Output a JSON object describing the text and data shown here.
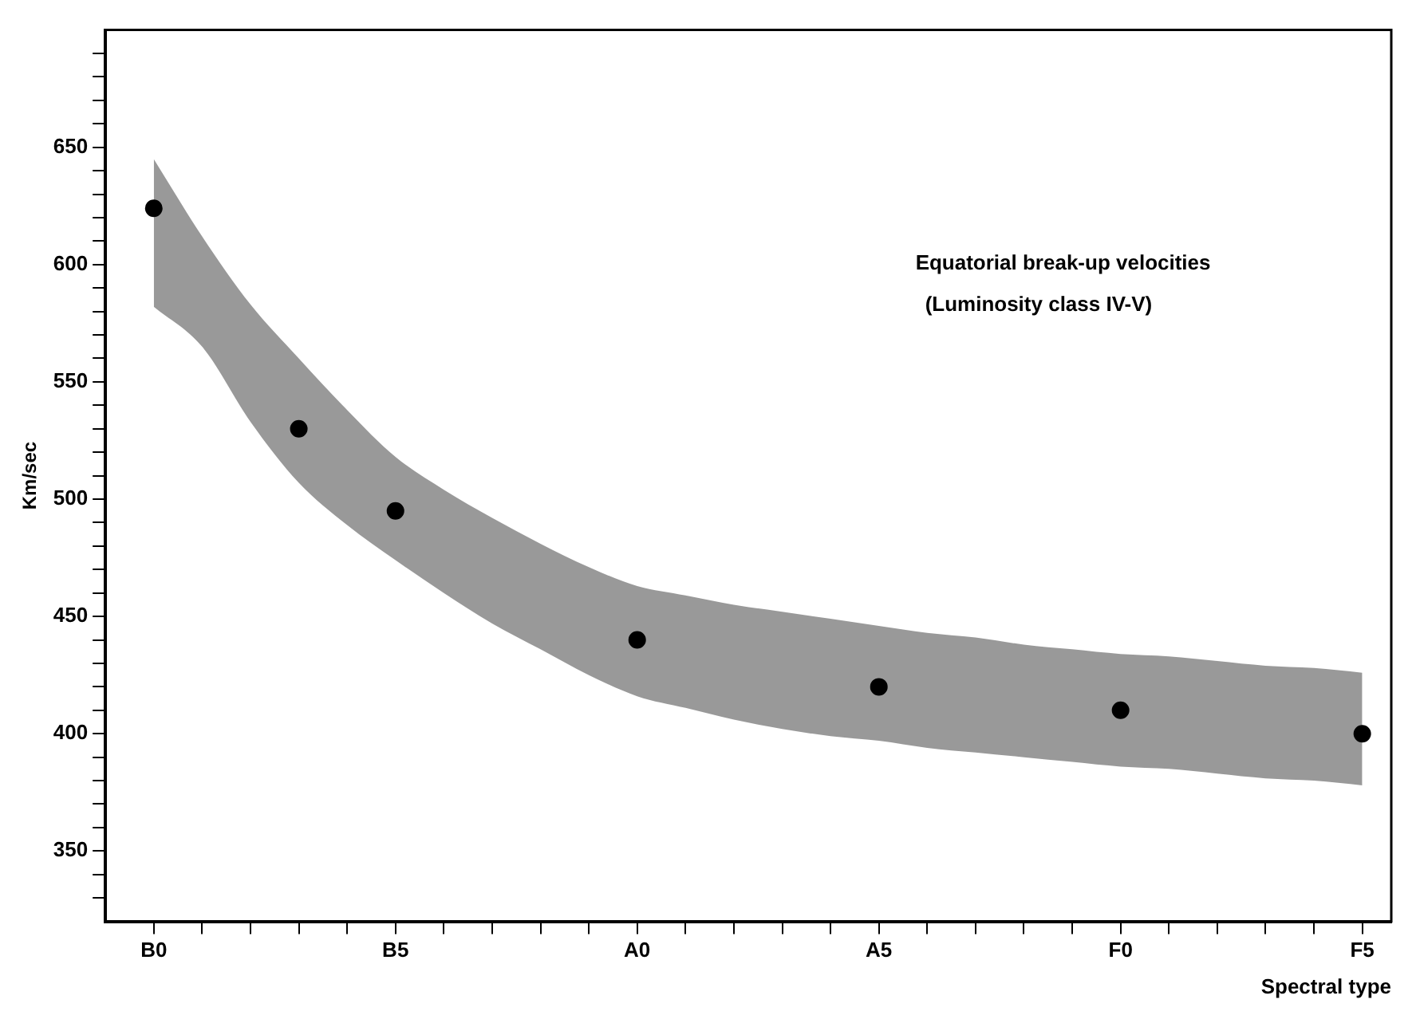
{
  "chart_data": {
    "type": "scatter",
    "xlabel": "Spectral type",
    "ylabel": "Km/sec",
    "annotations": [
      "Equatorial break-up velocities",
      "(Luminosity class IV-V)"
    ],
    "categories": [
      "B0",
      null,
      null,
      null,
      null,
      "B5",
      null,
      null,
      null,
      null,
      "A0",
      null,
      null,
      null,
      null,
      "A5",
      null,
      null,
      null,
      null,
      "F0",
      null,
      null,
      null,
      null,
      "F5"
    ],
    "ylim": [
      320,
      700
    ],
    "yticks": [
      {
        "value": 330,
        "label": null
      },
      {
        "value": 340,
        "label": null
      },
      350,
      {
        "value": 360,
        "label": null
      },
      {
        "value": 370,
        "label": null
      },
      {
        "value": 380,
        "label": null
      },
      {
        "value": 390,
        "label": null
      },
      400,
      {
        "value": 410,
        "label": null
      },
      {
        "value": 420,
        "label": null
      },
      {
        "value": 430,
        "label": null
      },
      {
        "value": 440,
        "label": null
      },
      450,
      {
        "value": 460,
        "label": null
      },
      {
        "value": 470,
        "label": null
      },
      {
        "value": 480,
        "label": null
      },
      {
        "value": 490,
        "label": null
      },
      500,
      {
        "value": 510,
        "label": null
      },
      {
        "value": 520,
        "label": null
      },
      {
        "value": 530,
        "label": null
      },
      {
        "value": 540,
        "label": null
      },
      550,
      {
        "value": 560,
        "label": null
      },
      {
        "value": 570,
        "label": null
      },
      {
        "value": 580,
        "label": null
      },
      {
        "value": 590,
        "label": null
      },
      600,
      {
        "value": 610,
        "label": null
      },
      {
        "value": 620,
        "label": null
      },
      {
        "value": 630,
        "label": null
      },
      {
        "value": 640,
        "label": null
      },
      650,
      {
        "value": 660,
        "label": null
      },
      {
        "value": 670,
        "label": null
      },
      {
        "value": 680,
        "label": null
      },
      {
        "value": 690,
        "label": null
      }
    ],
    "grid": false,
    "legend": false,
    "marker": "circle",
    "series": [
      {
        "color": "#000000",
        "values": [
          624,
          null,
          null,
          530,
          null,
          495,
          null,
          null,
          null,
          null,
          440,
          null,
          null,
          null,
          null,
          420,
          null,
          null,
          null,
          null,
          410,
          null,
          null,
          null,
          null,
          400
        ],
        "lower": [
          582,
          565,
          533,
          507,
          489,
          474,
          460,
          447,
          436,
          425,
          416,
          411,
          406,
          402,
          399,
          397,
          394,
          392,
          390,
          388,
          386,
          385,
          383,
          381,
          380,
          378
        ],
        "upper": [
          645,
          612,
          583,
          560,
          538,
          518,
          504,
          492,
          481,
          471,
          463,
          459,
          455,
          452,
          449,
          446,
          443,
          441,
          438,
          436,
          434,
          433,
          431,
          429,
          428,
          426
        ]
      }
    ]
  }
}
